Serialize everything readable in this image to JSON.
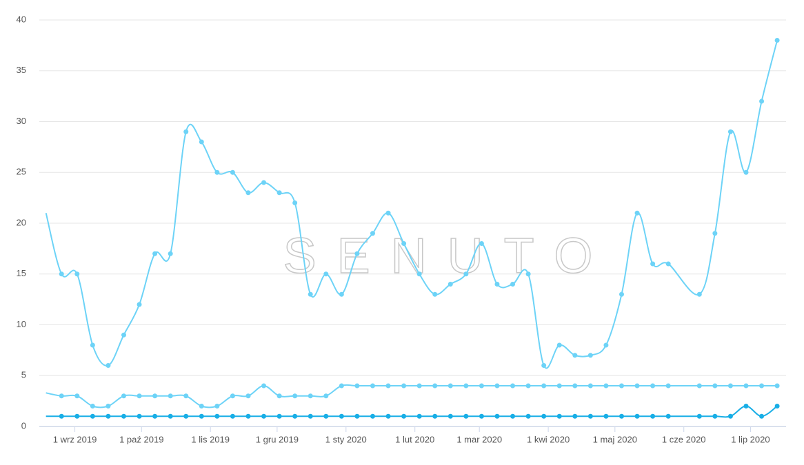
{
  "chart_data": {
    "type": "line",
    "watermark": "SENUTO",
    "x": [
      "2019-08-19",
      "2019-08-26",
      "2019-09-02",
      "2019-09-09",
      "2019-09-16",
      "2019-09-23",
      "2019-09-30",
      "2019-10-07",
      "2019-10-14",
      "2019-10-21",
      "2019-10-28",
      "2019-11-04",
      "2019-11-11",
      "2019-11-18",
      "2019-11-25",
      "2019-12-02",
      "2019-12-09",
      "2019-12-16",
      "2019-12-23",
      "2019-12-30",
      "2020-01-06",
      "2020-01-13",
      "2020-01-20",
      "2020-01-27",
      "2020-02-03",
      "2020-02-10",
      "2020-02-17",
      "2020-02-24",
      "2020-03-02",
      "2020-03-09",
      "2020-03-16",
      "2020-03-23",
      "2020-03-30",
      "2020-04-06",
      "2020-04-13",
      "2020-04-20",
      "2020-04-27",
      "2020-05-04",
      "2020-05-11",
      "2020-05-18",
      "2020-05-25",
      "2020-06-08",
      "2020-06-15",
      "2020-06-22",
      "2020-06-29",
      "2020-07-06",
      "2020-07-13"
    ],
    "series": [
      {
        "color": "#6dd3f7",
        "values": [
          21,
          15,
          15,
          8,
          6,
          9,
          12,
          17,
          17,
          29,
          28,
          25,
          25,
          23,
          24,
          23,
          22,
          13,
          15,
          13,
          17,
          19,
          21,
          18,
          15,
          13,
          14,
          15,
          18,
          14,
          14,
          15,
          6,
          8,
          7,
          7,
          8,
          13,
          21,
          16,
          16,
          13,
          19,
          29,
          25,
          32,
          38
        ]
      },
      {
        "color": "#6dd3f7",
        "values": [
          3.3,
          3,
          3,
          2,
          2,
          3,
          3,
          3,
          3,
          3,
          2,
          2,
          3,
          3,
          4,
          3,
          3,
          3,
          3,
          4,
          4,
          4,
          4,
          4,
          4,
          4,
          4,
          4,
          4,
          4,
          4,
          4,
          4,
          4,
          4,
          4,
          4,
          4,
          4,
          4,
          4,
          4,
          4,
          4,
          4,
          4,
          4
        ]
      },
      {
        "color": "#18aee6",
        "values": [
          1,
          1,
          1,
          1,
          1,
          1,
          1,
          1,
          1,
          1,
          1,
          1,
          1,
          1,
          1,
          1,
          1,
          1,
          1,
          1,
          1,
          1,
          1,
          1,
          1,
          1,
          1,
          1,
          1,
          1,
          1,
          1,
          1,
          1,
          1,
          1,
          1,
          1,
          1,
          1,
          1,
          1,
          1,
          1,
          2,
          1,
          2
        ]
      }
    ],
    "xlim": [
      "2019-08-16",
      "2020-07-17"
    ],
    "xticks": [
      {
        "value": "2019-09-01",
        "label": "1 wrz 2019"
      },
      {
        "value": "2019-10-01",
        "label": "1 paź 2019"
      },
      {
        "value": "2019-11-01",
        "label": "1 lis 2019"
      },
      {
        "value": "2019-12-01",
        "label": "1 gru 2019"
      },
      {
        "value": "2020-01-01",
        "label": "1 sty 2020"
      },
      {
        "value": "2020-02-01",
        "label": "1 lut 2020"
      },
      {
        "value": "2020-03-01",
        "label": "1 mar 2020"
      },
      {
        "value": "2020-04-01",
        "label": "1 kwi 2020"
      },
      {
        "value": "2020-05-01",
        "label": "1 maj 2020"
      },
      {
        "value": "2020-06-01",
        "label": "1 cze 2020"
      },
      {
        "value": "2020-07-01",
        "label": "1 lip 2020"
      }
    ],
    "ylim": [
      0,
      40
    ],
    "yticks": [
      0,
      5,
      10,
      15,
      20,
      25,
      30,
      35,
      40
    ],
    "grid": true
  }
}
